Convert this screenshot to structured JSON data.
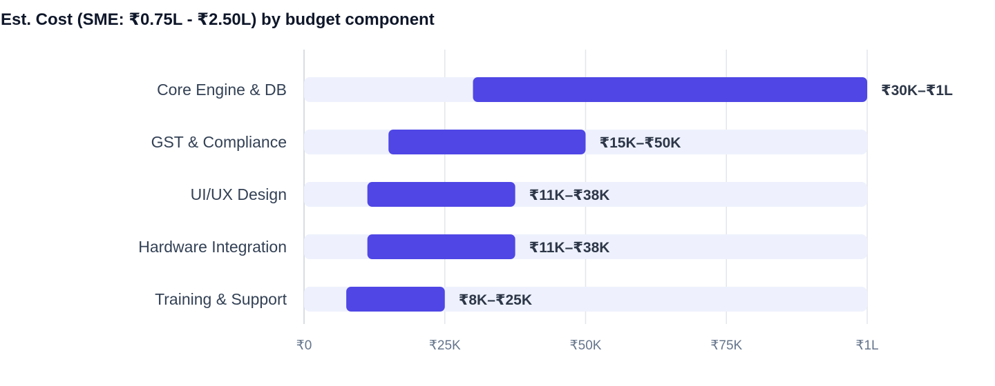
{
  "chart_data": {
    "type": "bar",
    "orientation": "horizontal",
    "title": "Est. Cost (SME: ₹0.75L - ₹2.50L) by budget component",
    "categories": [
      "Core Engine & DB",
      "GST & Compliance",
      "UI/UX Design",
      "Hardware Integration",
      "Training & Support"
    ],
    "ranges": [
      {
        "min": 30000,
        "max": 100000,
        "label": "₹30K–₹1L"
      },
      {
        "min": 15000,
        "max": 50000,
        "label": "₹15K–₹50K"
      },
      {
        "min": 11250,
        "max": 37500,
        "label": "₹11K–₹38K"
      },
      {
        "min": 11250,
        "max": 37500,
        "label": "₹11K–₹38K"
      },
      {
        "min": 7500,
        "max": 25000,
        "label": "₹8K–₹25K"
      }
    ],
    "xlim": [
      0,
      100000
    ],
    "xticks": [
      0,
      25000,
      50000,
      75000,
      100000
    ],
    "xtick_labels": [
      "₹0",
      "₹25K",
      "₹50K",
      "₹75K",
      "₹1L"
    ],
    "grid": true,
    "colors": {
      "bar": "#4f46e5",
      "track": "#eef1fd",
      "grid": "#e2e5ea"
    }
  }
}
